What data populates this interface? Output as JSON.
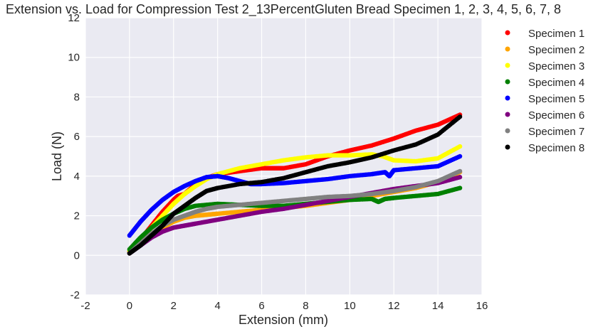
{
  "chart_data": {
    "type": "scatter",
    "title": "Extension vs. Load for Compression Test 2_13PercentGluten Bread Specimen 1, 2, 3, 4, 5, 6, 7, 8",
    "xlabel": "Extension (mm)",
    "ylabel": "Load (N)",
    "xlim": [
      -2,
      16
    ],
    "ylim": [
      -2,
      12
    ],
    "x_ticks": [
      "-2",
      "0",
      "2",
      "4",
      "6",
      "8",
      "10",
      "12",
      "14",
      "16"
    ],
    "y_ticks": [
      "-2",
      "0",
      "2",
      "4",
      "6",
      "8",
      "10",
      "12"
    ],
    "grid": true,
    "legend_position": "outside-right",
    "series": [
      {
        "name": "Specimen 1",
        "color": "#ff0000",
        "x": [
          0,
          0.5,
          1,
          1.5,
          2,
          2.2,
          2.5,
          3,
          3.5,
          4,
          5,
          6,
          6.5,
          7,
          8,
          9,
          10,
          11,
          12,
          13,
          14,
          15
        ],
        "y": [
          0.2,
          0.8,
          1.5,
          2.2,
          2.8,
          3.0,
          3.1,
          3.6,
          3.9,
          4.1,
          4.25,
          4.4,
          4.4,
          4.4,
          4.6,
          5.0,
          5.3,
          5.55,
          5.9,
          6.3,
          6.6,
          7.1
        ]
      },
      {
        "name": "Specimen 2",
        "color": "#ffa500",
        "x": [
          0,
          0.5,
          1,
          1.5,
          2,
          2.5,
          3,
          3.5,
          4,
          5,
          6,
          7,
          8,
          9,
          10,
          11,
          12,
          13,
          14,
          15
        ],
        "y": [
          0.2,
          0.6,
          1.0,
          1.4,
          1.7,
          1.9,
          2.0,
          2.05,
          2.1,
          2.2,
          2.3,
          2.4,
          2.5,
          2.65,
          2.8,
          3.0,
          3.2,
          3.4,
          3.7,
          4.2
        ]
      },
      {
        "name": "Specimen 3",
        "color": "#ffff00",
        "x": [
          0,
          0.5,
          1,
          1.5,
          2,
          2.5,
          3,
          3.5,
          4,
          5,
          6,
          7,
          8,
          9,
          10,
          11,
          11.5,
          12,
          13,
          14,
          15
        ],
        "y": [
          0.2,
          0.8,
          1.4,
          2.0,
          2.6,
          3.1,
          3.5,
          3.85,
          4.1,
          4.4,
          4.6,
          4.8,
          4.95,
          5.05,
          5.05,
          5.1,
          5.0,
          4.8,
          4.75,
          4.9,
          5.5
        ]
      },
      {
        "name": "Specimen 4",
        "color": "#008000",
        "x": [
          0,
          0.5,
          1,
          1.5,
          2,
          2.5,
          3,
          4,
          5,
          6,
          7,
          8,
          9,
          10,
          11,
          11.3,
          11.6,
          12,
          13,
          14,
          15
        ],
        "y": [
          0.3,
          0.9,
          1.4,
          1.8,
          2.1,
          2.35,
          2.5,
          2.6,
          2.55,
          2.5,
          2.5,
          2.6,
          2.7,
          2.8,
          2.85,
          2.7,
          2.85,
          2.9,
          3.0,
          3.1,
          3.4
        ]
      },
      {
        "name": "Specimen 5",
        "color": "#0000ff",
        "x": [
          0,
          0.5,
          1,
          1.5,
          2,
          2.5,
          3,
          3.5,
          4,
          4.5,
          5,
          5.5,
          6,
          7,
          8,
          9,
          10,
          11,
          11.6,
          11.8,
          12,
          13,
          14,
          15
        ],
        "y": [
          1.0,
          1.7,
          2.3,
          2.8,
          3.2,
          3.5,
          3.75,
          3.95,
          4.0,
          3.9,
          3.75,
          3.6,
          3.6,
          3.65,
          3.75,
          3.85,
          4.0,
          4.1,
          4.2,
          4.0,
          4.3,
          4.4,
          4.5,
          5.0
        ]
      },
      {
        "name": "Specimen 6",
        "color": "#800080",
        "x": [
          0,
          0.5,
          1,
          1.5,
          2,
          2.5,
          3,
          4,
          5,
          6,
          7,
          8,
          9,
          10,
          11,
          12,
          13,
          14,
          15
        ],
        "y": [
          0.1,
          0.5,
          0.9,
          1.2,
          1.4,
          1.5,
          1.6,
          1.8,
          2.0,
          2.2,
          2.35,
          2.55,
          2.75,
          2.95,
          3.15,
          3.35,
          3.5,
          3.65,
          3.95
        ]
      },
      {
        "name": "Specimen 7",
        "color": "#808080",
        "x": [
          0,
          0.5,
          1,
          1.5,
          2,
          2.5,
          3,
          3.5,
          4,
          5,
          6,
          7,
          8,
          9,
          10,
          11,
          12,
          13,
          14,
          15
        ],
        "y": [
          0.1,
          0.6,
          1.1,
          1.5,
          1.8,
          2.0,
          2.2,
          2.35,
          2.45,
          2.55,
          2.65,
          2.75,
          2.85,
          2.95,
          3.0,
          3.1,
          3.25,
          3.45,
          3.75,
          4.25
        ]
      },
      {
        "name": "Specimen 8",
        "color": "#000000",
        "x": [
          0,
          0.5,
          1,
          1.5,
          2,
          2.5,
          3,
          3.5,
          4,
          5,
          6,
          7,
          8,
          9,
          10,
          11,
          12,
          13,
          14,
          15
        ],
        "y": [
          0.1,
          0.5,
          1.0,
          1.5,
          2.1,
          2.5,
          2.9,
          3.25,
          3.4,
          3.6,
          3.7,
          3.9,
          4.2,
          4.5,
          4.7,
          4.95,
          5.3,
          5.6,
          6.1,
          7.0
        ]
      }
    ]
  }
}
